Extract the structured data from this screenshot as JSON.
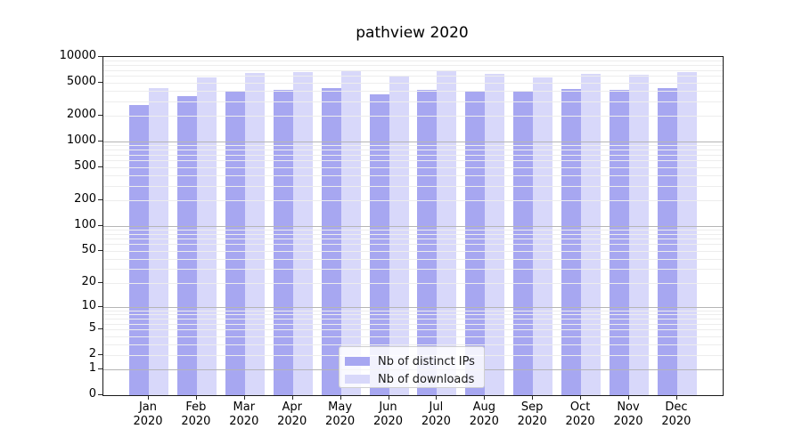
{
  "chart_data": {
    "type": "bar",
    "title": "pathview 2020",
    "categories": [
      "Jan",
      "Feb",
      "Mar",
      "Apr",
      "May",
      "Jun",
      "Jul",
      "Aug",
      "Sep",
      "Oct",
      "Nov",
      "Dec"
    ],
    "category_year": "2020",
    "series": [
      {
        "name": "Nb of distinct IPs",
        "color": "#a7a7f1",
        "values": [
          2670,
          3450,
          3990,
          4060,
          4330,
          3600,
          4090,
          3860,
          3930,
          4160,
          4030,
          4300
        ]
      },
      {
        "name": "Nb of downloads",
        "color": "#d8d8fa",
        "values": [
          4230,
          5740,
          6440,
          6650,
          6980,
          5940,
          6720,
          6330,
          5740,
          6280,
          6170,
          6590
        ]
      }
    ],
    "y_axis": {
      "scale": "log1p",
      "lim": [
        0,
        10000
      ],
      "ticks": [
        10000,
        5000,
        2000,
        1000,
        500,
        200,
        100,
        50,
        20,
        10,
        5,
        2,
        1,
        0
      ],
      "major_gridline_values": [
        1,
        10,
        100,
        1000
      ],
      "minor_gridline_multipliers": [
        2,
        3,
        4,
        5,
        6,
        7,
        8,
        9
      ]
    },
    "xlabel": "",
    "ylabel": "",
    "grid": {
      "horizontal": true,
      "minor": true,
      "vertical": false
    },
    "legend": {
      "position": "lower center"
    },
    "colors": {
      "major_grid": "#b5b5b5",
      "minor_grid": "#ededed",
      "spine": "#1a1a1a",
      "background": "#ffffff"
    }
  }
}
